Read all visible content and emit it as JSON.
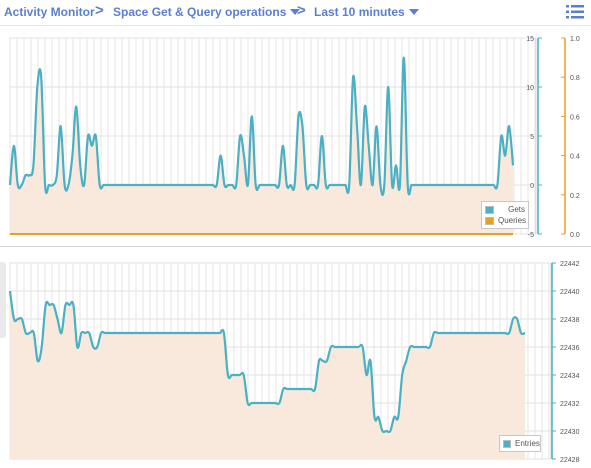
{
  "breadcrumb": {
    "root": "Activity Monitor",
    "separator": ">",
    "view": "Space Get & Query operations",
    "range": "Last 10 minutes"
  },
  "colors": {
    "link": "#5a7fd0",
    "gets": "#4ab0c4",
    "queries": "#e8a020",
    "entries": "#4ab0c4",
    "area_fill": "#f9e9dd"
  },
  "icons": {
    "menu": "list-icon",
    "dropdown": "caret-down-icon"
  },
  "chart_data": [
    {
      "type": "line",
      "grid": true,
      "legend_position": "bottom-right",
      "y_left": {
        "ticks": [
          "15",
          "10",
          "5",
          "0",
          "-5"
        ],
        "range": [
          -5,
          15
        ]
      },
      "y_right": {
        "ticks": [
          "1.0",
          "0.8",
          "0.6",
          "0.4",
          "0.2",
          "0.0"
        ],
        "range": [
          0,
          1
        ]
      },
      "series": [
        {
          "name": "Gets",
          "axis": "left",
          "color": "#4ab0c4",
          "values": [
            0,
            4,
            0,
            0,
            1,
            1,
            2,
            10,
            11,
            0,
            0,
            0,
            1,
            6,
            0,
            0,
            3,
            8,
            2,
            0,
            5,
            4,
            5,
            0,
            0,
            0,
            0,
            0,
            0,
            0,
            0,
            0,
            0,
            0,
            0,
            0,
            0,
            0,
            0,
            0,
            0,
            0,
            0,
            0,
            0,
            0,
            0,
            0,
            0,
            0,
            0,
            0,
            0,
            0,
            3,
            0,
            0,
            0,
            0,
            5,
            3,
            0,
            7,
            0,
            0,
            0,
            0,
            0,
            0,
            0,
            4,
            0,
            0,
            0,
            7,
            6,
            0,
            0,
            0,
            0,
            5,
            0,
            0,
            0,
            0,
            0,
            0,
            0,
            11,
            6,
            0,
            8,
            4,
            0,
            6,
            0,
            0,
            10,
            0,
            2,
            0,
            13,
            0,
            0,
            0,
            0,
            0,
            0,
            0,
            0,
            0,
            0,
            0,
            0,
            0,
            0,
            0,
            0,
            0,
            0,
            0,
            0,
            0,
            0,
            0,
            0,
            5,
            3,
            6,
            2
          ]
        },
        {
          "name": "Queries",
          "axis": "right",
          "color": "#e8a020",
          "values": [
            0,
            0,
            0,
            0,
            0,
            0,
            0,
            0,
            0,
            0,
            0,
            0,
            0,
            0,
            0,
            0,
            0,
            0,
            0,
            0,
            0,
            0,
            0,
            0,
            0,
            0,
            0,
            0,
            0,
            0,
            0,
            0,
            0,
            0,
            0,
            0,
            0,
            0,
            0,
            0,
            0,
            0,
            0,
            0,
            0,
            0,
            0,
            0,
            0,
            0,
            0,
            0,
            0,
            0,
            0,
            0,
            0,
            0,
            0,
            0,
            0,
            0,
            0,
            0,
            0,
            0,
            0,
            0,
            0,
            0,
            0,
            0,
            0,
            0,
            0,
            0,
            0,
            0,
            0,
            0,
            0,
            0,
            0,
            0,
            0,
            0,
            0,
            0,
            0,
            0,
            0,
            0,
            0,
            0,
            0,
            0,
            0,
            0,
            0,
            0,
            0,
            0,
            0,
            0,
            0,
            0,
            0,
            0,
            0,
            0,
            0,
            0,
            0,
            0,
            0,
            0,
            0,
            0,
            0,
            0,
            0,
            0,
            0,
            0,
            0,
            0,
            0,
            0,
            0,
            0
          ]
        }
      ]
    },
    {
      "type": "line",
      "grid": true,
      "legend_position": "bottom-right",
      "y_right": {
        "ticks": [
          "22442",
          "22440",
          "22438",
          "22436",
          "22434",
          "22432",
          "22430",
          "22428"
        ],
        "range": [
          22428,
          22442
        ]
      },
      "series": [
        {
          "name": "Entries",
          "axis": "right",
          "color": "#4ab0c4",
          "values": [
            22440,
            22438,
            22438,
            22438,
            22437,
            22437,
            22437,
            22435,
            22436,
            22439,
            22439,
            22439,
            22438,
            22437,
            22439,
            22439,
            22439,
            22436,
            22437,
            22437,
            22437,
            22436,
            22436,
            22437,
            22437,
            22437,
            22437,
            22437,
            22437,
            22437,
            22437,
            22437,
            22437,
            22437,
            22437,
            22437,
            22437,
            22437,
            22437,
            22437,
            22437,
            22437,
            22437,
            22437,
            22437,
            22437,
            22437,
            22437,
            22437,
            22437,
            22437,
            22437,
            22437,
            22437,
            22437,
            22434,
            22434,
            22434,
            22434,
            22434,
            22432,
            22432,
            22432,
            22432,
            22432,
            22432,
            22432,
            22432,
            22432,
            22433,
            22433,
            22433,
            22433,
            22433,
            22433,
            22433,
            22433,
            22433,
            22435,
            22435,
            22435,
            22436,
            22436,
            22436,
            22436,
            22436,
            22436,
            22436,
            22436,
            22436,
            22434,
            22435,
            22431,
            22431,
            22430,
            22430,
            22430,
            22431,
            22431,
            22434,
            22435,
            22436,
            22436,
            22436,
            22436,
            22436,
            22436,
            22437,
            22437,
            22437,
            22437,
            22437,
            22437,
            22437,
            22437,
            22437,
            22437,
            22437,
            22437,
            22437,
            22437,
            22437,
            22437,
            22437,
            22437,
            22437,
            22437,
            22438,
            22438,
            22437,
            22437
          ]
        }
      ]
    }
  ]
}
